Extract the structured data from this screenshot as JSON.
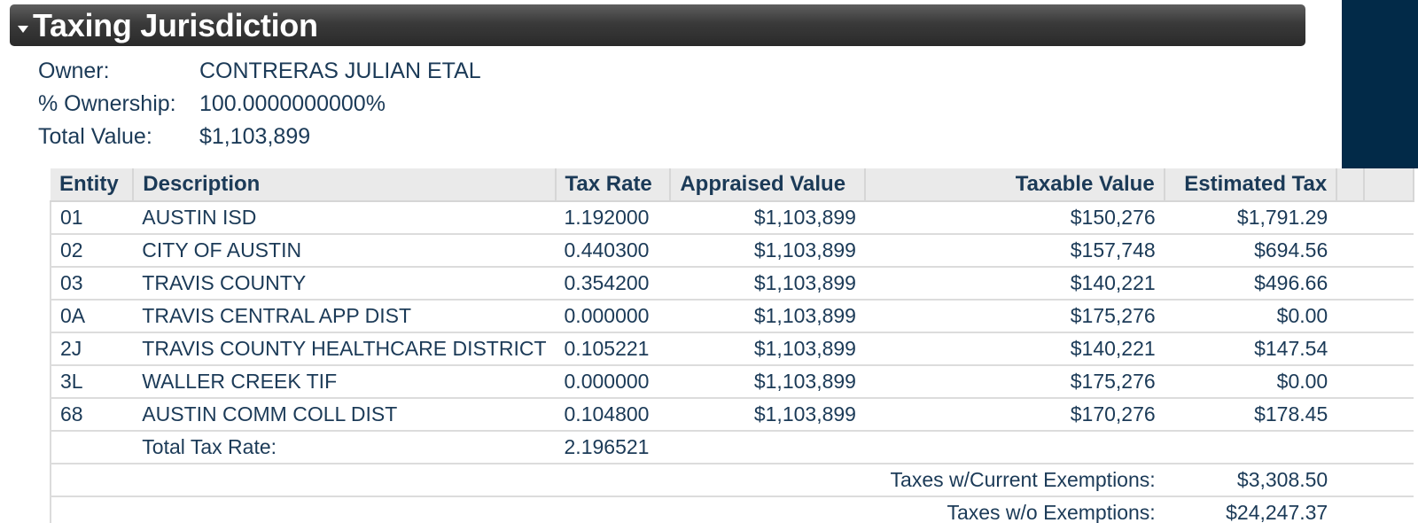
{
  "section": {
    "title": "Taxing Jurisdiction",
    "caret_icon": "caret-down-icon"
  },
  "owner_info": {
    "owner_label": "Owner:",
    "owner_value": "CONTRERAS JULIAN ETAL",
    "ownership_label": "% Ownership:",
    "ownership_value": "100.0000000000%",
    "total_value_label": "Total Value:",
    "total_value_value": "$1,103,899"
  },
  "tax_table": {
    "headers": {
      "entity": "Entity",
      "description": "Description",
      "tax_rate": "Tax Rate",
      "appraised_value": "Appraised Value",
      "taxable_value": "Taxable Value",
      "estimated_tax": "Estimated Tax"
    },
    "rows": [
      {
        "entity": "01",
        "description": "AUSTIN ISD",
        "tax_rate": "1.192000",
        "appraised_value": "$1,103,899",
        "taxable_value": "$150,276",
        "estimated_tax": "$1,791.29"
      },
      {
        "entity": "02",
        "description": "CITY OF AUSTIN",
        "tax_rate": "0.440300",
        "appraised_value": "$1,103,899",
        "taxable_value": "$157,748",
        "estimated_tax": "$694.56"
      },
      {
        "entity": "03",
        "description": "TRAVIS COUNTY",
        "tax_rate": "0.354200",
        "appraised_value": "$1,103,899",
        "taxable_value": "$140,221",
        "estimated_tax": "$496.66"
      },
      {
        "entity": "0A",
        "description": "TRAVIS CENTRAL APP DIST",
        "tax_rate": "0.000000",
        "appraised_value": "$1,103,899",
        "taxable_value": "$175,276",
        "estimated_tax": "$0.00"
      },
      {
        "entity": "2J",
        "description": "TRAVIS COUNTY HEALTHCARE DISTRICT",
        "tax_rate": "0.105221",
        "appraised_value": "$1,103,899",
        "taxable_value": "$140,221",
        "estimated_tax": "$147.54"
      },
      {
        "entity": "3L",
        "description": "WALLER CREEK TIF",
        "tax_rate": "0.000000",
        "appraised_value": "$1,103,899",
        "taxable_value": "$175,276",
        "estimated_tax": "$0.00"
      },
      {
        "entity": "68",
        "description": "AUSTIN COMM COLL DIST",
        "tax_rate": "0.104800",
        "appraised_value": "$1,103,899",
        "taxable_value": "$170,276",
        "estimated_tax": "$178.45"
      }
    ],
    "total_rate_label": "Total Tax Rate:",
    "total_rate_value": "2.196521",
    "with_exemptions_label": "Taxes w/Current Exemptions:",
    "with_exemptions_value": "$3,308.50",
    "without_exemptions_label": "Taxes w/o Exemptions:",
    "without_exemptions_value": "$24,247.37"
  },
  "colors": {
    "header_bar": "#3a3a3a",
    "side_block": "#022a48",
    "text": "#1b3a57",
    "table_header_bg": "#eaeaea"
  }
}
